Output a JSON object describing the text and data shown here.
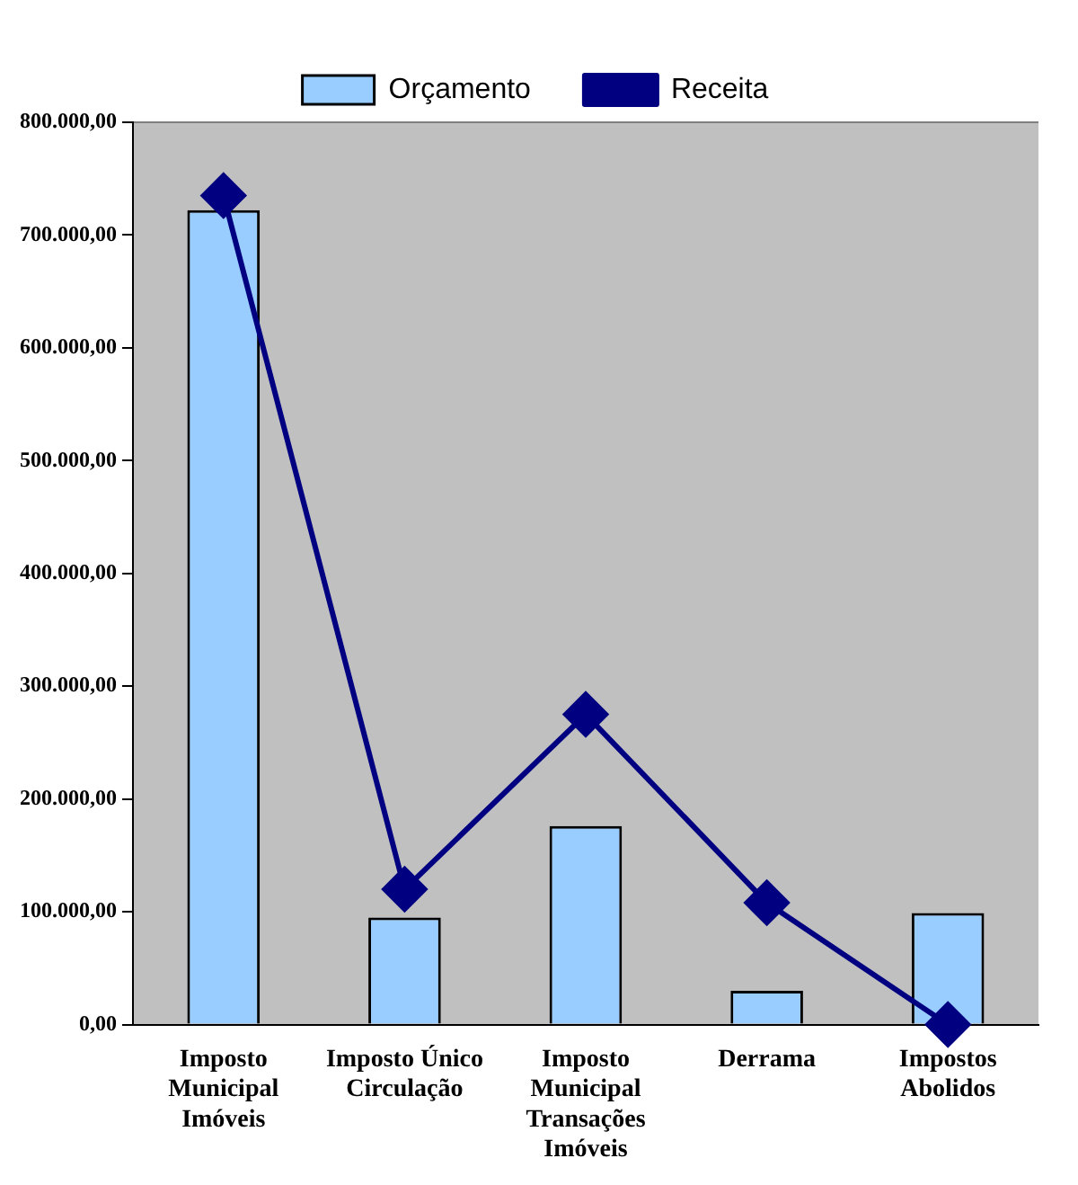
{
  "chart_data": {
    "type": "bar",
    "categories": [
      "Imposto Municipal Imóveis",
      "Imposto Único Circulação",
      "Imposto Municipal Transações Imóveis",
      "Derrama",
      "Impostos Abolidos"
    ],
    "series": [
      {
        "name": "Orçamento",
        "color": "#99ccff",
        "values": [
          722000,
          95000,
          176000,
          30000,
          99000
        ]
      },
      {
        "name": "Receita",
        "type": "line",
        "color": "#000080",
        "values": [
          735000,
          120000,
          275000,
          108000,
          0
        ]
      }
    ],
    "ylim": [
      0,
      800000
    ],
    "yticks": [
      {
        "value": 0,
        "label": "0,00"
      },
      {
        "value": 100000,
        "label": "100.000,00"
      },
      {
        "value": 200000,
        "label": "200.000,00"
      },
      {
        "value": 300000,
        "label": "300.000,00"
      },
      {
        "value": 400000,
        "label": "400.000,00"
      },
      {
        "value": 500000,
        "label": "500.000,00"
      },
      {
        "value": 600000,
        "label": "600.000,00"
      },
      {
        "value": 700000,
        "label": "700.000,00"
      },
      {
        "value": 800000,
        "label": "800.000,00"
      }
    ],
    "grid": false,
    "legend": "top",
    "marker": "diamond",
    "line_style": "solid"
  }
}
